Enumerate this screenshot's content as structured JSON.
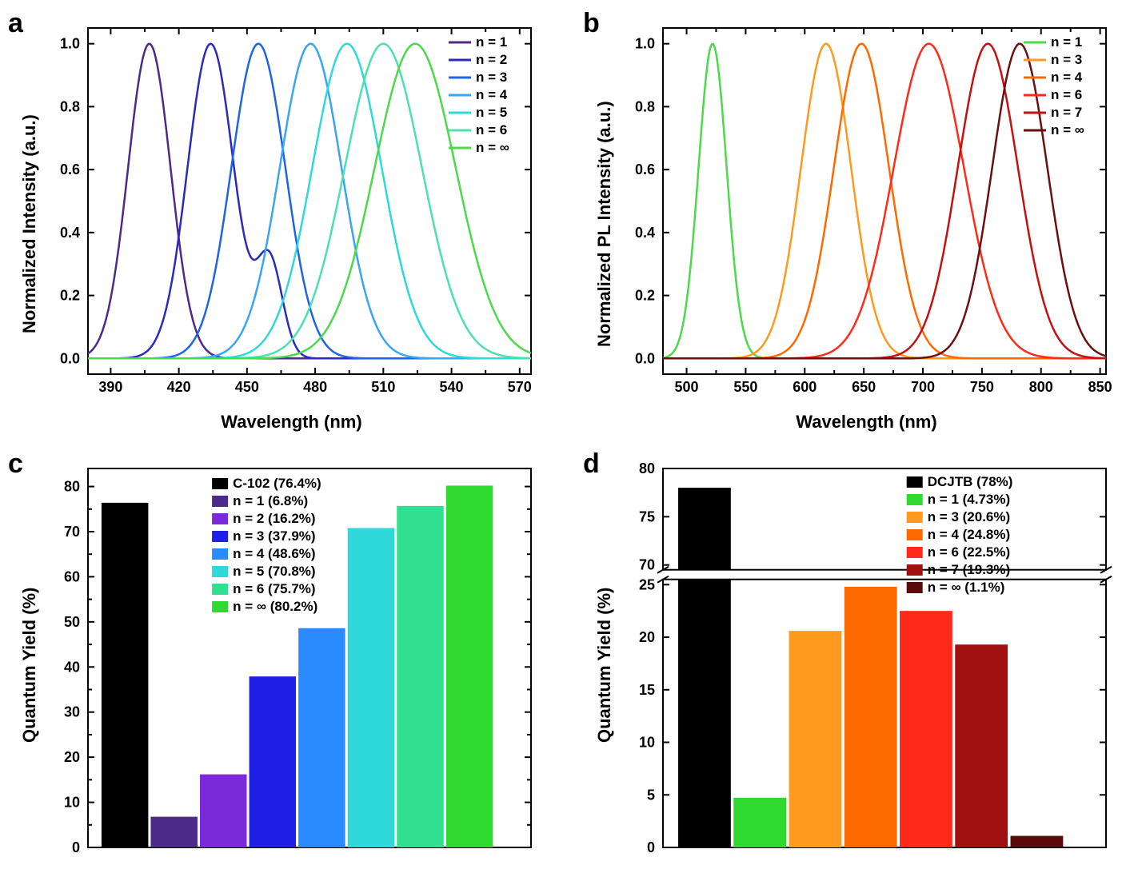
{
  "panel_a": {
    "label": "a",
    "type": "line",
    "xlabel": "Wavelength (nm)",
    "ylabel": "Normalized Intensity (a.u.)",
    "xlim": [
      380,
      575
    ],
    "ylim": [
      -0.05,
      1.05
    ],
    "xticks": [
      390,
      420,
      450,
      480,
      510,
      540,
      570
    ],
    "yticks": [
      0.0,
      0.2,
      0.4,
      0.6,
      0.8,
      1.0
    ],
    "background_color": "#ffffff",
    "axis_color": "#000000",
    "line_width": 2.5,
    "label_fontsize": 22,
    "tick_fontsize": 18,
    "legend_fontsize": 17,
    "legend_pos": "top-right",
    "series": [
      {
        "name": "n = 1",
        "color": "#4b2a8a",
        "peak": 407,
        "fwhm": 22
      },
      {
        "name": "n = 2",
        "color": "#2a2abf",
        "peak": 434,
        "fwhm": 24,
        "shoulder": {
          "x": 460,
          "y": 0.3
        }
      },
      {
        "name": "n = 3",
        "color": "#1f63e6",
        "peak": 455,
        "fwhm": 28
      },
      {
        "name": "n = 4",
        "color": "#3aa5f0",
        "peak": 478,
        "fwhm": 32
      },
      {
        "name": "n = 5",
        "color": "#30d9d9",
        "peak": 494,
        "fwhm": 36
      },
      {
        "name": "n = 6",
        "color": "#4de0b0",
        "peak": 510,
        "fwhm": 40
      },
      {
        "name": "n = ∞",
        "color": "#4cd94c",
        "peak": 524,
        "fwhm": 42
      }
    ]
  },
  "panel_b": {
    "label": "b",
    "type": "line",
    "xlabel": "Wavelength (nm)",
    "ylabel": "Normalized PL Intensity (a.u.)",
    "xlim": [
      480,
      855
    ],
    "ylim": [
      -0.05,
      1.05
    ],
    "xticks": [
      500,
      550,
      600,
      650,
      700,
      750,
      800,
      850
    ],
    "yticks": [
      0.0,
      0.2,
      0.4,
      0.6,
      0.8,
      1.0
    ],
    "background_color": "#ffffff",
    "axis_color": "#000000",
    "line_width": 2.5,
    "label_fontsize": 22,
    "tick_fontsize": 18,
    "legend_fontsize": 17,
    "legend_pos": "top-right",
    "series": [
      {
        "name": "n = 1",
        "color": "#4cd94c",
        "peak": 522,
        "fwhm": 28
      },
      {
        "name": "n = 3",
        "color": "#ff9a1f",
        "peak": 618,
        "fwhm": 50
      },
      {
        "name": "n = 4",
        "color": "#ff6a00",
        "peak": 648,
        "fwhm": 55
      },
      {
        "name": "n = 6",
        "color": "#ff2a1a",
        "peak": 705,
        "fwhm": 70
      },
      {
        "name": "n = 7",
        "color": "#c41010",
        "peak": 755,
        "fwhm": 60
      },
      {
        "name": "n = ∞",
        "color": "#6b0f0f",
        "peak": 782,
        "fwhm": 55
      }
    ]
  },
  "panel_c": {
    "label": "c",
    "type": "bar",
    "xlabel": "",
    "ylabel": "Quantum Yield (%)",
    "xlim": [
      0,
      9
    ],
    "ylim": [
      0,
      84
    ],
    "yticks": [
      0,
      10,
      20,
      30,
      40,
      50,
      60,
      70,
      80
    ],
    "background_color": "#ffffff",
    "axis_color": "#000000",
    "bar_width": 0.95,
    "label_fontsize": 22,
    "tick_fontsize": 18,
    "legend_fontsize": 17,
    "legend_pos": "upper-inside",
    "bars": [
      {
        "name": "C-102 (76.4%)",
        "value": 76.4,
        "color": "#000000"
      },
      {
        "name": "n = 1 (6.8%)",
        "value": 6.8,
        "color": "#4b2a8a"
      },
      {
        "name": "n = 2 (16.2%)",
        "value": 16.2,
        "color": "#7a2ad9"
      },
      {
        "name": "n = 3 (37.9%)",
        "value": 37.9,
        "color": "#1f1fe6"
      },
      {
        "name": "n = 4 (48.6%)",
        "value": 48.6,
        "color": "#2a8aff"
      },
      {
        "name": "n = 5 (70.8%)",
        "value": 70.8,
        "color": "#30d9d9"
      },
      {
        "name": "n = 6 (75.7%)",
        "value": 75.7,
        "color": "#30e090"
      },
      {
        "name": "n = ∞ (80.2%)",
        "value": 80.2,
        "color": "#30d930"
      }
    ]
  },
  "panel_d": {
    "label": "d",
    "type": "bar-brokenaxis",
    "xlabel": "",
    "ylabel": "Quantum Yield (%)",
    "xlim": [
      0,
      8
    ],
    "lower_ylim": [
      0,
      25.5
    ],
    "upper_ylim": [
      69.5,
      80
    ],
    "lower_ticks": [
      0,
      5,
      10,
      15,
      20,
      25
    ],
    "upper_ticks": [
      70,
      75,
      80
    ],
    "break_y_lower": 25.5,
    "break_y_upper": 69.5,
    "background_color": "#ffffff",
    "axis_color": "#000000",
    "bar_width": 0.95,
    "label_fontsize": 22,
    "tick_fontsize": 18,
    "legend_fontsize": 17,
    "legend_pos": "upper-right-inside",
    "bars": [
      {
        "name": "DCJTB (78%)",
        "value": 78.0,
        "color": "#000000"
      },
      {
        "name": "n = 1 (4.73%)",
        "value": 4.73,
        "color": "#30d930"
      },
      {
        "name": "n = 3 (20.6%)",
        "value": 20.6,
        "color": "#ff9a1f"
      },
      {
        "name": "n = 4 (24.8%)",
        "value": 24.8,
        "color": "#ff6a00"
      },
      {
        "name": "n = 6 (22.5%)",
        "value": 22.5,
        "color": "#ff2a1a"
      },
      {
        "name": "n = 7 (19.3%)",
        "value": 19.3,
        "color": "#a01010"
      },
      {
        "name": "n = ∞ (1.1%)",
        "value": 1.1,
        "color": "#5a0a0a"
      }
    ]
  }
}
